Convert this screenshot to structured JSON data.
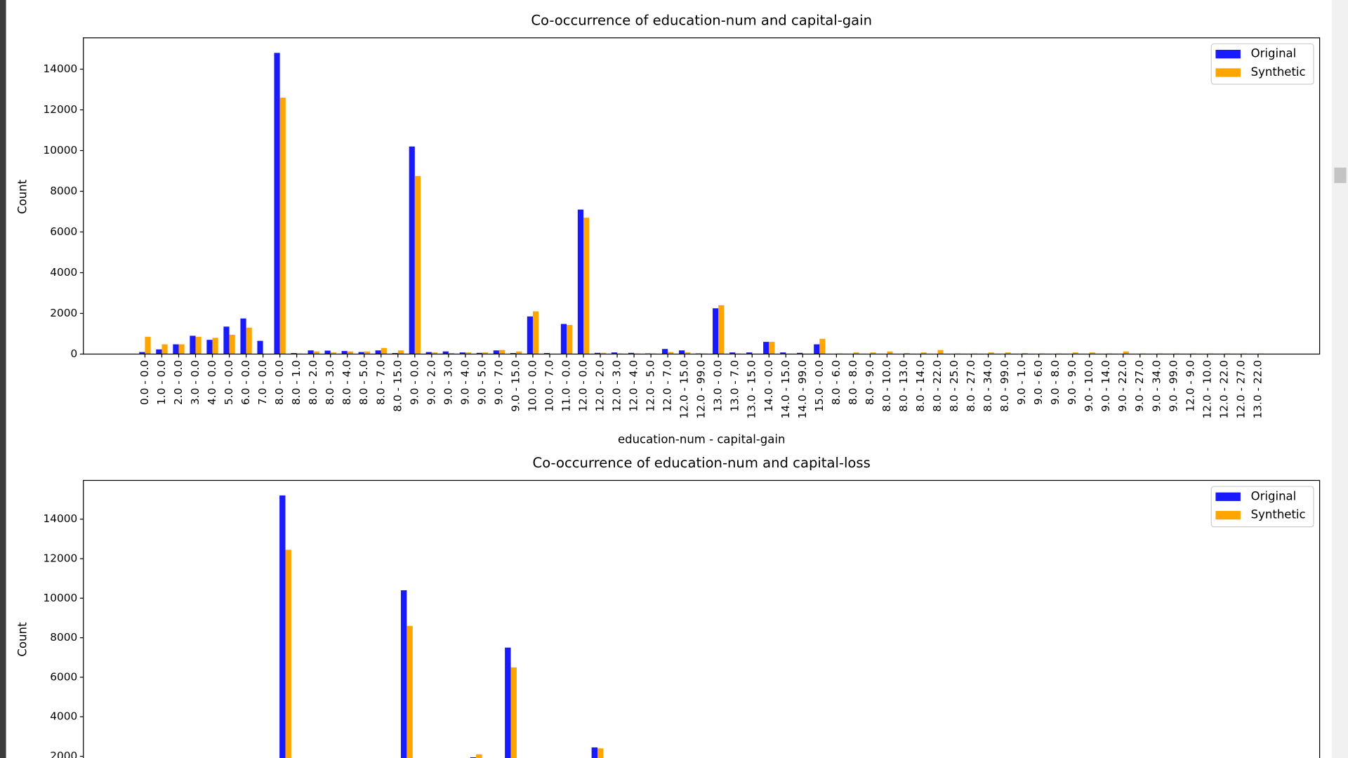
{
  "chart_data": [
    {
      "type": "bar",
      "title": "Co-occurrence of education-num and capital-gain",
      "xlabel": "education-num - capital-gain",
      "ylabel": "Count",
      "categories": [
        "0.0 - 0.0",
        "1.0 - 0.0",
        "2.0 - 0.0",
        "3.0 - 0.0",
        "4.0 - 0.0",
        "5.0 - 0.0",
        "6.0 - 0.0",
        "7.0 - 0.0",
        "8.0 - 0.0",
        "8.0 - 1.0",
        "8.0 - 2.0",
        "8.0 - 3.0",
        "8.0 - 4.0",
        "8.0 - 5.0",
        "8.0 - 7.0",
        "8.0 - 15.0",
        "9.0 - 0.0",
        "9.0 - 2.0",
        "9.0 - 3.0",
        "9.0 - 4.0",
        "9.0 - 5.0",
        "9.0 - 7.0",
        "9.0 - 15.0",
        "10.0 - 0.0",
        "10.0 - 7.0",
        "11.0 - 0.0",
        "12.0 - 0.0",
        "12.0 - 2.0",
        "12.0 - 3.0",
        "12.0 - 4.0",
        "12.0 - 5.0",
        "12.0 - 7.0",
        "12.0 - 15.0",
        "12.0 - 99.0",
        "13.0 - 0.0",
        "13.0 - 7.0",
        "13.0 - 15.0",
        "14.0 - 0.0",
        "14.0 - 15.0",
        "14.0 - 99.0",
        "15.0 - 0.0",
        "8.0 - 6.0",
        "8.0 - 8.0",
        "8.0 - 9.0",
        "8.0 - 10.0",
        "8.0 - 13.0",
        "8.0 - 14.0",
        "8.0 - 22.0",
        "8.0 - 25.0",
        "8.0 - 27.0",
        "8.0 - 34.0",
        "8.0 - 99.0",
        "9.0 - 1.0",
        "9.0 - 6.0",
        "9.0 - 8.0",
        "9.0 - 9.0",
        "9.0 - 10.0",
        "9.0 - 14.0",
        "9.0 - 22.0",
        "9.0 - 27.0",
        "9.0 - 34.0",
        "9.0 - 99.0",
        "12.0 - 9.0",
        "12.0 - 10.0",
        "12.0 - 22.0",
        "12.0 - 27.0",
        "13.0 - 22.0"
      ],
      "series": [
        {
          "name": "Original",
          "color": "#1a1aff",
          "values": [
            100,
            230,
            480,
            900,
            700,
            1350,
            1750,
            650,
            14800,
            50,
            180,
            170,
            150,
            100,
            180,
            50,
            10200,
            100,
            130,
            80,
            60,
            180,
            50,
            1850,
            50,
            1480,
            7100,
            60,
            80,
            60,
            30,
            250,
            180,
            30,
            2250,
            80,
            80,
            600,
            80,
            60,
            480,
            0,
            0,
            0,
            0,
            0,
            0,
            0,
            0,
            0,
            0,
            0,
            0,
            0,
            0,
            0,
            0,
            0,
            0,
            0,
            0,
            0,
            0,
            0,
            0,
            0,
            0
          ]
        },
        {
          "name": "Synthetic",
          "color": "#ffa500",
          "values": [
            850,
            480,
            480,
            850,
            800,
            950,
            1300,
            0,
            12600,
            30,
            130,
            80,
            130,
            130,
            300,
            180,
            8750,
            80,
            50,
            80,
            80,
            200,
            130,
            2100,
            0,
            1430,
            6700,
            60,
            30,
            30,
            30,
            100,
            80,
            30,
            2400,
            30,
            20,
            600,
            20,
            20,
            750,
            30,
            80,
            80,
            130,
            50,
            80,
            200,
            30,
            30,
            80,
            80,
            50,
            30,
            30,
            80,
            80,
            30,
            130,
            30,
            30,
            30,
            30,
            30,
            30,
            30,
            30
          ]
        }
      ],
      "ylim": [
        0,
        15540
      ],
      "yticks": [
        0,
        2000,
        4000,
        6000,
        8000,
        10000,
        12000,
        14000
      ],
      "legend": "upper right"
    },
    {
      "type": "bar",
      "title": "Co-occurrence of education-num and capital-loss",
      "ylabel": "Count",
      "categories": [
        null,
        null,
        null,
        null,
        null,
        null,
        null,
        null,
        null,
        null,
        null,
        null,
        null,
        null,
        null,
        null,
        null,
        null,
        null,
        null,
        null,
        null,
        null,
        null,
        null,
        null,
        null,
        null,
        null,
        null,
        null,
        null,
        null,
        null,
        null,
        null,
        null,
        null,
        null,
        null,
        null,
        null,
        null,
        null,
        null,
        null,
        null,
        null,
        null,
        null,
        null,
        null,
        null,
        null,
        null,
        null,
        null,
        null,
        null,
        null,
        null,
        null,
        null,
        null,
        null
      ],
      "series": [
        {
          "name": "Original",
          "color": "#1a1aff",
          "values": [
            null,
            null,
            null,
            null,
            null,
            null,
            null,
            null,
            15200,
            null,
            null,
            null,
            null,
            null,
            null,
            10400,
            null,
            null,
            null,
            1950,
            null,
            7500,
            null,
            null,
            null,
            null,
            2450,
            null,
            null,
            null,
            null,
            null,
            null,
            null,
            null,
            null,
            null,
            null,
            null,
            null,
            null,
            null,
            null,
            null,
            null,
            null,
            null,
            null,
            null,
            null,
            null,
            null,
            null,
            null,
            null,
            null,
            null,
            null,
            null,
            null,
            null,
            null,
            null,
            null,
            null
          ]
        },
        {
          "name": "Synthetic",
          "color": "#ffa500",
          "values": [
            null,
            null,
            null,
            null,
            null,
            null,
            null,
            null,
            12450,
            null,
            null,
            null,
            null,
            null,
            null,
            8600,
            null,
            null,
            null,
            2100,
            null,
            6500,
            null,
            null,
            null,
            null,
            2400,
            null,
            null,
            null,
            null,
            null,
            null,
            null,
            null,
            null,
            null,
            null,
            null,
            null,
            null,
            null,
            null,
            null,
            null,
            null,
            null,
            null,
            null,
            null,
            null,
            null,
            null,
            null,
            null,
            null,
            null,
            null,
            null,
            null,
            null,
            null,
            null,
            null,
            null
          ]
        }
      ],
      "ylim": [
        0,
        15960
      ],
      "yticks": [
        2000,
        4000,
        6000,
        8000,
        10000,
        12000,
        14000
      ],
      "legend": "upper right"
    }
  ]
}
